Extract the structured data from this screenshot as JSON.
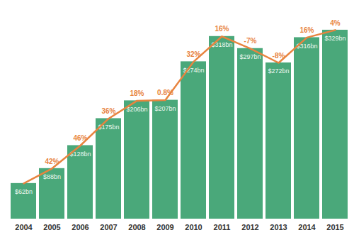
{
  "chart_data": {
    "type": "bar",
    "categories": [
      "2004",
      "2005",
      "2006",
      "2007",
      "2008",
      "2009",
      "2010",
      "2011",
      "2012",
      "2013",
      "2014",
      "2015"
    ],
    "values": [
      62,
      88,
      128,
      175,
      206,
      207,
      274,
      318,
      297,
      272,
      316,
      329
    ],
    "value_labels": [
      "$62bn",
      "$88bn",
      "$128bn",
      "$175bn",
      "$206bn",
      "$207bn",
      "$274bn",
      "$318bn",
      "$297bn",
      "$272bn",
      "$316bn",
      "$329bn"
    ],
    "color": "#4aa87a",
    "data_labels": true,
    "ylim": [
      0,
      340
    ],
    "tick_labels": "x",
    "growth": {
      "type": "line",
      "color": "#e8843f",
      "values": [
        null,
        42,
        46,
        36,
        18,
        0.8,
        32,
        16,
        -7,
        -8,
        16,
        4
      ],
      "labels": [
        null,
        "42%",
        "46%",
        "36%",
        "18%",
        "0.8%",
        "32%",
        "16%",
        "-7%",
        "-8%",
        "16%",
        "4%"
      ]
    }
  }
}
